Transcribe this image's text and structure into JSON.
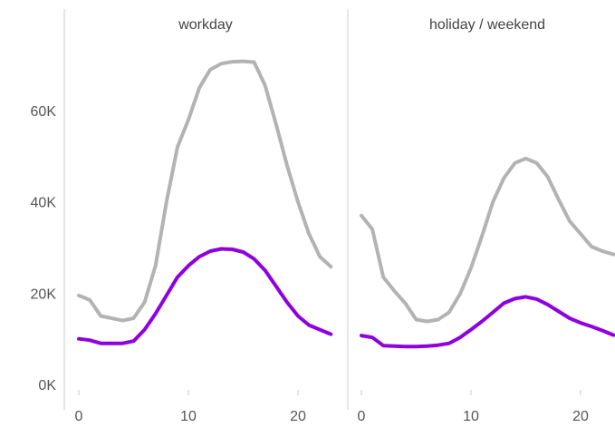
{
  "chart_data": {
    "type": "line",
    "layout": "small-multiples",
    "grid": false,
    "legend": "none",
    "ylim": [
      0,
      75000
    ],
    "xlim": [
      -1.5,
      23
    ],
    "y_ticks": [
      {
        "value": 0,
        "label": "0K"
      },
      {
        "value": 20000,
        "label": "20K"
      },
      {
        "value": 40000,
        "label": "40K"
      },
      {
        "value": 60000,
        "label": "60K"
      }
    ],
    "x_ticks": [
      {
        "value": 0,
        "label": "0"
      },
      {
        "value": 10,
        "label": "10"
      },
      {
        "value": 20,
        "label": "20"
      }
    ],
    "colors": {
      "series_a": "#b3b3b3",
      "series_b": "#8f00e0",
      "axis": "#cccccc"
    },
    "panels": [
      {
        "title": "workday",
        "x": [
          0,
          1,
          2,
          3,
          4,
          5,
          6,
          7,
          8,
          9,
          10,
          11,
          12,
          13,
          14,
          15,
          16,
          17,
          18,
          19,
          20,
          21,
          22,
          23
        ],
        "series": [
          {
            "color": "#b3b3b3",
            "values": [
              19500,
              18500,
              15000,
              14500,
              14000,
              14500,
              18000,
              26000,
              40000,
              52000,
              58000,
              65000,
              69000,
              70300,
              70700,
              70800,
              70600,
              65500,
              57000,
              48000,
              40000,
              33000,
              28000,
              25800
            ]
          },
          {
            "color": "#8f00e0",
            "values": [
              10000,
              9700,
              9000,
              9000,
              9000,
              9500,
              12000,
              15500,
              19500,
              23500,
              26000,
              28000,
              29200,
              29700,
              29600,
              29000,
              27500,
              25000,
              21500,
              18000,
              15000,
              13000,
              12000,
              11000
            ]
          }
        ]
      },
      {
        "title": "holiday / weekend",
        "x": [
          0,
          1,
          2,
          3,
          4,
          5,
          6,
          7,
          8,
          9,
          10,
          11,
          12,
          13,
          14,
          15,
          16,
          17,
          18,
          19,
          20,
          21,
          22,
          23
        ],
        "series": [
          {
            "color": "#b3b3b3",
            "values": [
              37000,
              34000,
              23500,
              20500,
              17800,
              14200,
              13800,
              14200,
              15800,
              19800,
              25500,
              32500,
              40000,
              45200,
              48500,
              49500,
              48500,
              45500,
              40500,
              35800,
              33000,
              30200,
              29200,
              28500
            ]
          },
          {
            "color": "#8f00e0",
            "values": [
              10700,
              10300,
              8500,
              8400,
              8300,
              8300,
              8400,
              8600,
              9000,
              10300,
              12000,
              13800,
              15800,
              17800,
              18800,
              19200,
              18700,
              17500,
              16000,
              14500,
              13500,
              12700,
              11800,
              10800
            ]
          }
        ]
      }
    ]
  }
}
